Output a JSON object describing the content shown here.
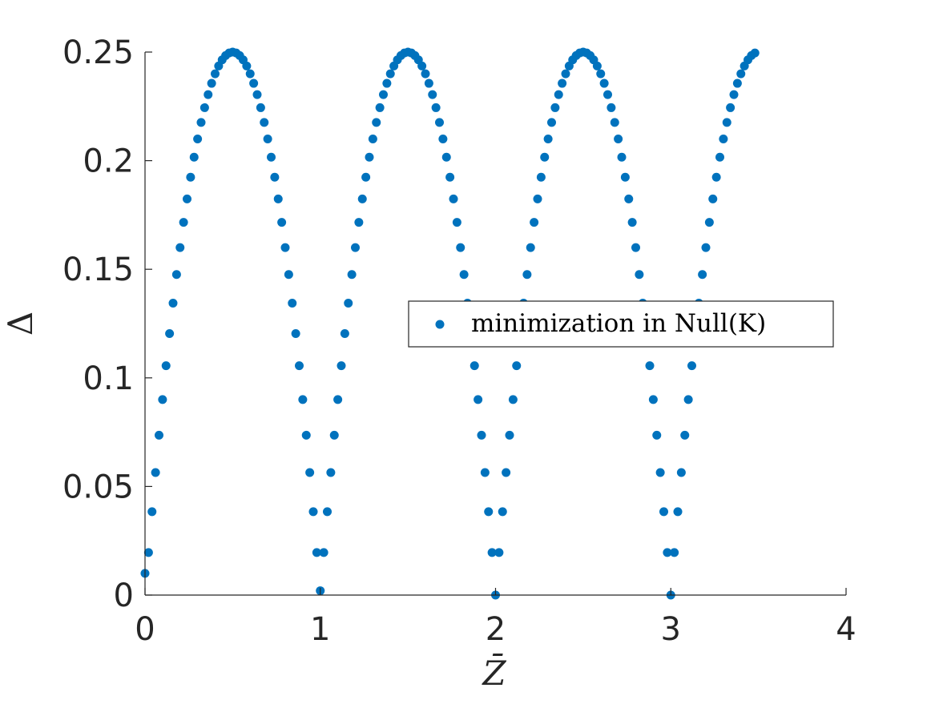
{
  "chart_data": {
    "type": "scatter",
    "title": "",
    "xlabel": "Z̄",
    "ylabel": "Δ",
    "xlim": [
      0,
      4
    ],
    "ylim": [
      0,
      0.25
    ],
    "xticks": [
      0,
      1,
      2,
      3,
      4
    ],
    "xtick_labels": [
      "0",
      "1",
      "2",
      "3",
      "4"
    ],
    "yticks": [
      0,
      0.05,
      0.1,
      0.15,
      0.2,
      0.25
    ],
    "ytick_labels": [
      "0",
      "0.05",
      "0.1",
      "0.15",
      "0.2",
      "0.25"
    ],
    "grid": false,
    "legend_position": "center-right",
    "series": [
      {
        "name": "minimization in Null(K)",
        "color": "#0072BD",
        "marker": "filled-circle",
        "x": [
          0,
          0.02,
          0.04,
          0.06,
          0.08,
          0.1,
          0.12,
          0.14,
          0.16,
          0.18,
          0.2,
          0.22,
          0.24,
          0.26,
          0.28,
          0.3,
          0.32,
          0.34,
          0.36,
          0.38,
          0.4,
          0.42,
          0.44,
          0.46,
          0.48,
          0.5,
          0.52,
          0.54,
          0.56,
          0.58,
          0.6,
          0.62,
          0.64,
          0.66,
          0.68,
          0.7,
          0.72,
          0.74,
          0.76,
          0.78,
          0.8,
          0.82,
          0.84,
          0.86,
          0.88,
          0.9,
          0.92,
          0.94,
          0.96,
          0.98,
          1,
          1.02,
          1.04,
          1.06,
          1.08,
          1.1,
          1.12,
          1.14,
          1.16,
          1.18,
          1.2,
          1.22,
          1.24,
          1.26,
          1.28,
          1.3,
          1.32,
          1.34,
          1.36,
          1.38,
          1.4,
          1.42,
          1.44,
          1.46,
          1.48,
          1.5,
          1.52,
          1.54,
          1.56,
          1.58,
          1.6,
          1.62,
          1.64,
          1.66,
          1.68,
          1.7,
          1.72,
          1.74,
          1.76,
          1.78,
          1.8,
          1.82,
          1.84,
          1.86,
          1.88,
          1.9,
          1.92,
          1.94,
          1.96,
          1.98,
          2,
          2.02,
          2.04,
          2.06,
          2.08,
          2.1,
          2.12,
          2.14,
          2.16,
          2.18,
          2.2,
          2.22,
          2.24,
          2.26,
          2.28,
          2.3,
          2.32,
          2.34,
          2.36,
          2.38,
          2.4,
          2.42,
          2.44,
          2.46,
          2.48,
          2.5,
          2.52,
          2.54,
          2.56,
          2.58,
          2.6,
          2.62,
          2.64,
          2.66,
          2.68,
          2.7,
          2.72,
          2.74,
          2.76,
          2.78,
          2.8,
          2.82,
          2.84,
          2.86,
          2.88,
          2.9,
          2.92,
          2.94,
          2.96,
          2.98,
          3,
          3.02,
          3.04,
          3.06,
          3.08,
          3.1,
          3.12,
          3.14,
          3.16,
          3.18,
          3.2,
          3.22,
          3.24,
          3.26,
          3.28,
          3.3,
          3.32,
          3.34,
          3.36,
          3.38,
          3.4,
          3.42,
          3.44,
          3.46,
          3.48
        ],
        "y": [
          0.01,
          0.0196,
          0.0384,
          0.0564,
          0.0736,
          0.09,
          0.1056,
          0.1204,
          0.1344,
          0.1476,
          0.16,
          0.1716,
          0.1824,
          0.1924,
          0.2016,
          0.21,
          0.2176,
          0.2244,
          0.2304,
          0.2356,
          0.24,
          0.2436,
          0.2464,
          0.2484,
          0.2496,
          0.25,
          0.2496,
          0.2484,
          0.2464,
          0.2436,
          0.24,
          0.2356,
          0.2304,
          0.2244,
          0.2176,
          0.21,
          0.2016,
          0.1924,
          0.1824,
          0.1716,
          0.16,
          0.1476,
          0.1344,
          0.1204,
          0.1056,
          0.09,
          0.0736,
          0.0564,
          0.0384,
          0.0196,
          0.002,
          0.0196,
          0.0384,
          0.0564,
          0.0736,
          0.09,
          0.1056,
          0.1204,
          0.1344,
          0.1476,
          0.16,
          0.1716,
          0.1824,
          0.1924,
          0.2016,
          0.21,
          0.2176,
          0.2244,
          0.2304,
          0.2356,
          0.24,
          0.2436,
          0.2464,
          0.2484,
          0.2496,
          0.25,
          0.2496,
          0.2484,
          0.2464,
          0.2436,
          0.24,
          0.2356,
          0.2304,
          0.2244,
          0.2176,
          0.21,
          0.2016,
          0.1924,
          0.1824,
          0.1716,
          0.16,
          0.1476,
          0.1344,
          0.1204,
          0.1056,
          0.09,
          0.0736,
          0.0564,
          0.0384,
          0.0196,
          0,
          0.0196,
          0.0384,
          0.0564,
          0.0736,
          0.09,
          0.1056,
          0.1204,
          0.1344,
          0.1476,
          0.16,
          0.1716,
          0.1824,
          0.1924,
          0.2016,
          0.21,
          0.2176,
          0.2244,
          0.2304,
          0.2356,
          0.24,
          0.2436,
          0.2464,
          0.2484,
          0.2496,
          0.25,
          0.2496,
          0.2484,
          0.2464,
          0.2436,
          0.24,
          0.2356,
          0.2304,
          0.2244,
          0.2176,
          0.21,
          0.2016,
          0.1924,
          0.1824,
          0.1716,
          0.16,
          0.1476,
          0.1344,
          0.1204,
          0.1056,
          0.09,
          0.0736,
          0.0564,
          0.0384,
          0.0196,
          0,
          0.0196,
          0.0384,
          0.0564,
          0.0736,
          0.09,
          0.1056,
          0.1204,
          0.1344,
          0.1476,
          0.16,
          0.1716,
          0.1824,
          0.1924,
          0.2016,
          0.21,
          0.2176,
          0.2244,
          0.2304,
          0.2356,
          0.24,
          0.2436,
          0.2464,
          0.2484,
          0.2496
        ]
      }
    ]
  }
}
